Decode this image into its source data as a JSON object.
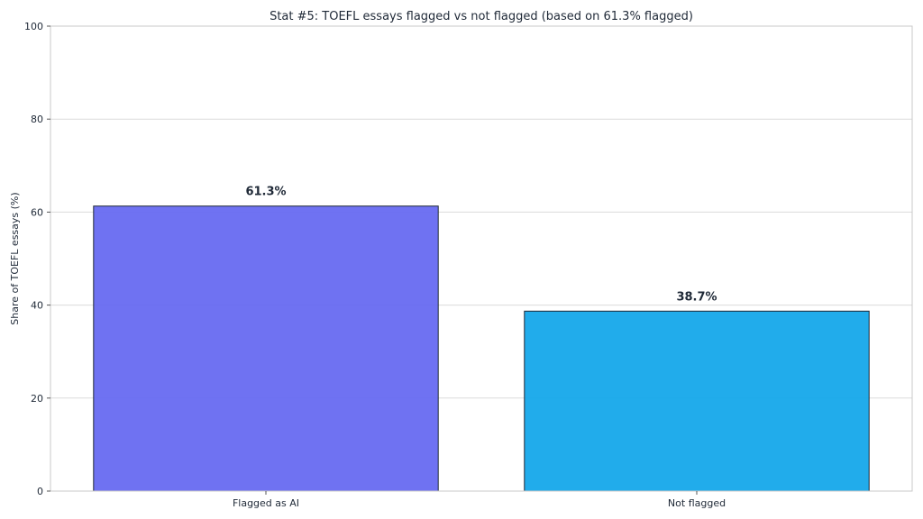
{
  "chart_data": {
    "type": "bar",
    "title": "Stat #5: TOEFL essays flagged vs not flagged (based on 61.3% flagged)",
    "xlabel": "",
    "ylabel": "Share of TOEFL essays (%)",
    "categories": [
      "Flagged as AI",
      "Not flagged"
    ],
    "values": [
      61.3,
      38.7
    ],
    "value_labels": [
      "61.3%",
      "38.7%"
    ],
    "colors": [
      "#6366f1",
      "#0ea5e9"
    ],
    "edge_color": "#1f2937",
    "ylim": [
      0,
      100
    ],
    "yticks": [
      0,
      20,
      40,
      60,
      80,
      100
    ],
    "ytick_labels": [
      "0",
      "20",
      "40",
      "60",
      "80",
      "100"
    ],
    "grid": "y",
    "legend": "none"
  }
}
